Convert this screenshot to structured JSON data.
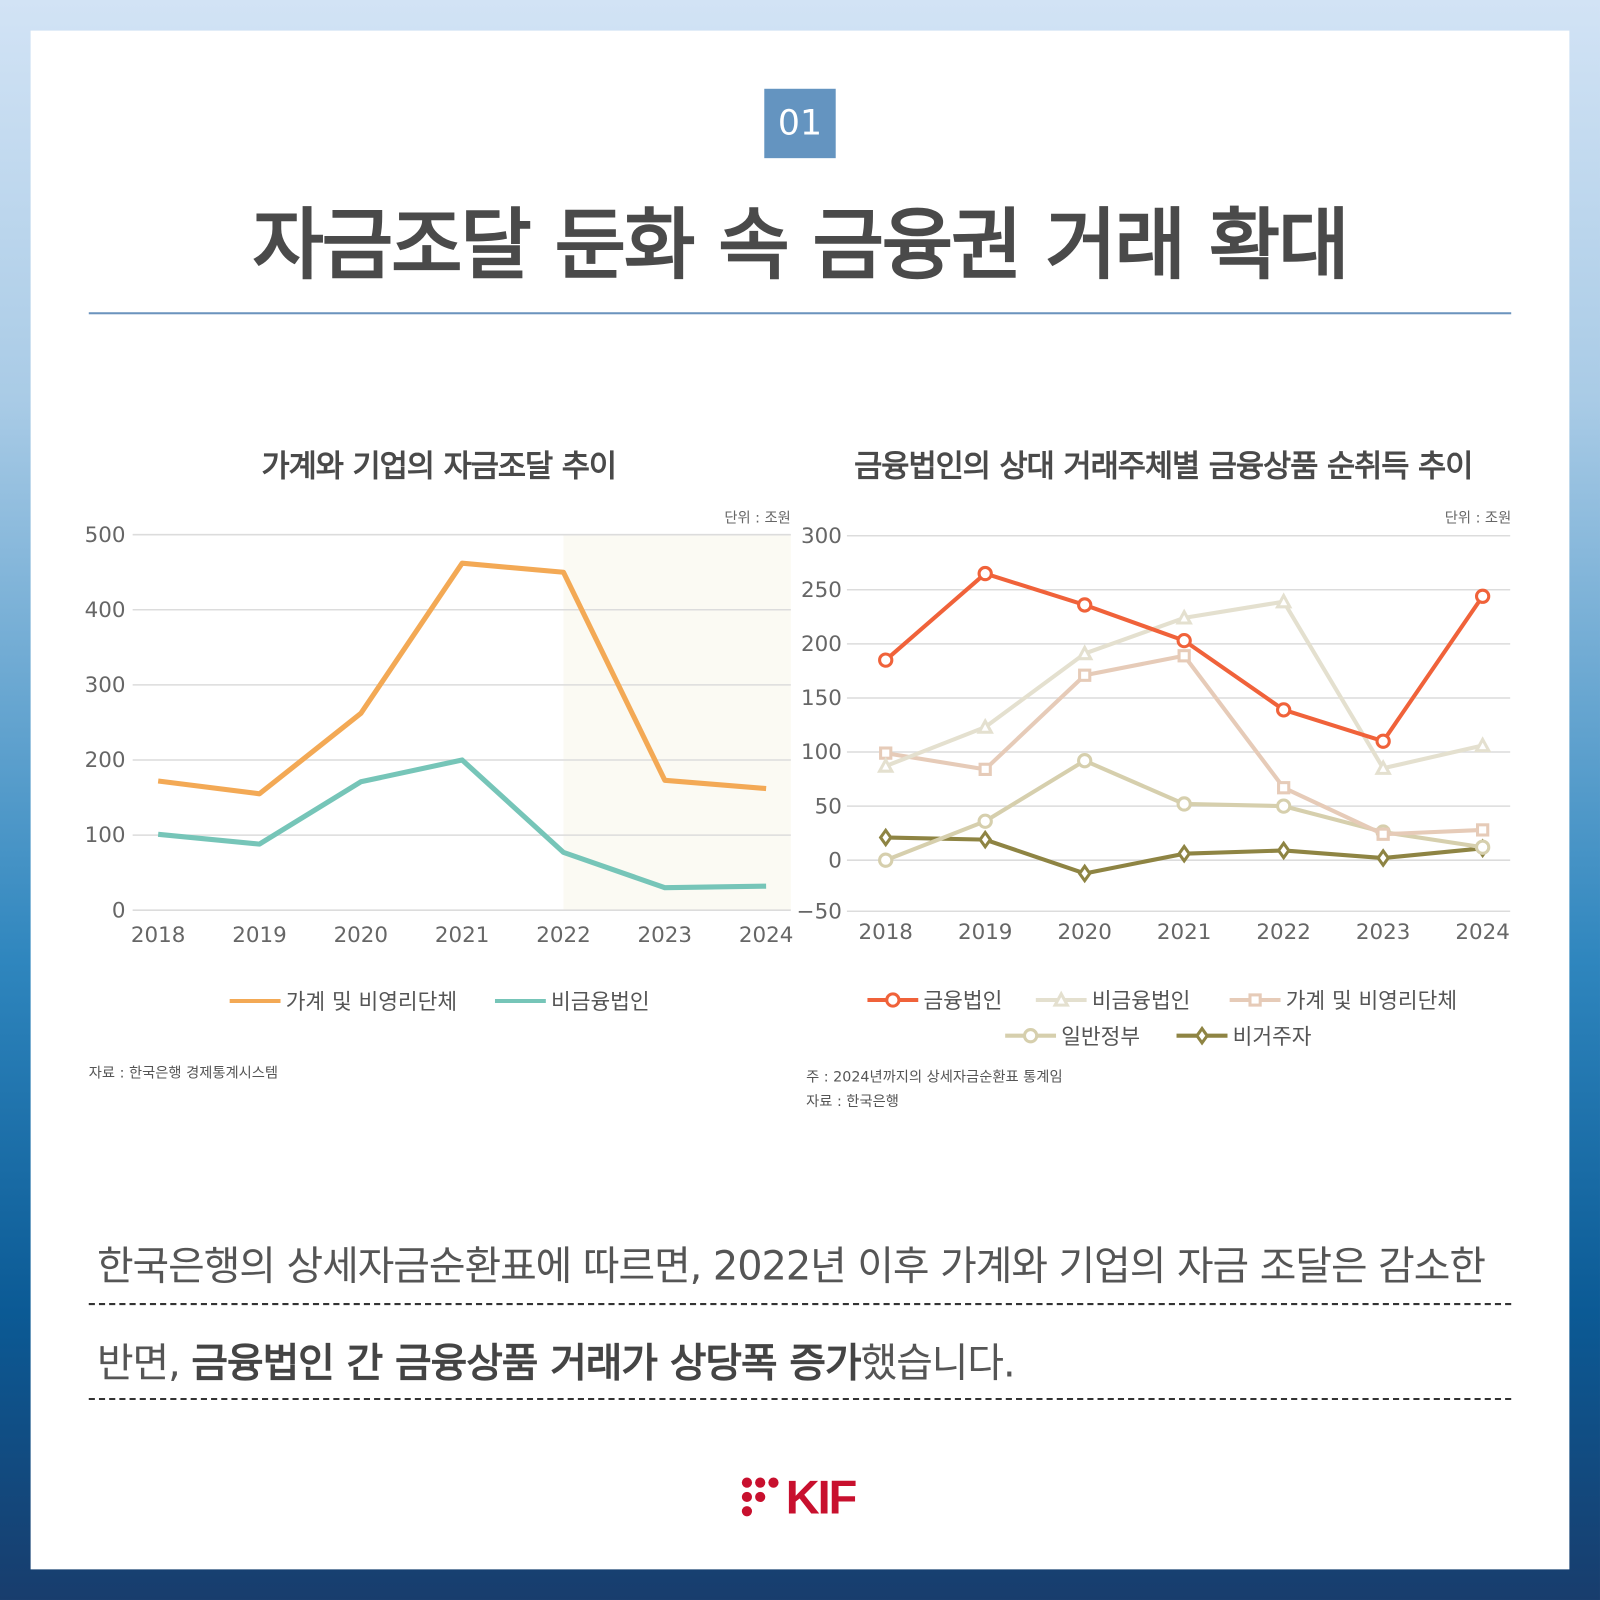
{
  "header": {
    "badge": "01",
    "title": "자금조달 둔화 속 금융권 거래 확대"
  },
  "chart_data": [
    {
      "type": "line",
      "title": "가계와 기업의 자금조달 추이",
      "unit": "단위 : 조원",
      "x": [
        "2018",
        "2019",
        "2020",
        "2021",
        "2022",
        "2023",
        "2024"
      ],
      "ylim": [
        0,
        500
      ],
      "yticks": [
        0,
        100,
        200,
        300,
        400,
        500
      ],
      "highlight_from": "2022",
      "series": [
        {
          "name": "가계 및 비영리단체",
          "color": "#f3a955",
          "marker": "none",
          "values": [
            172,
            155,
            262,
            462,
            450,
            173,
            162
          ]
        },
        {
          "name": "비금융법인",
          "color": "#76c5b8",
          "marker": "none",
          "values": [
            101,
            88,
            171,
            200,
            77,
            30,
            32
          ]
        }
      ],
      "legend": "bottom",
      "source": "자료 : 한국은행 경제통계시스템"
    },
    {
      "type": "line",
      "title": "금융법인의 상대 거래주체별 금융상품 순취득 추이",
      "unit": "단위 : 조원",
      "x": [
        "2018",
        "2019",
        "2020",
        "2021",
        "2022",
        "2023",
        "2024"
      ],
      "ylim": [
        -50,
        300
      ],
      "yticks": [
        -50,
        0,
        50,
        100,
        150,
        200,
        250,
        300
      ],
      "series": [
        {
          "name": "금융법인",
          "color": "#f0623a",
          "marker": "circle",
          "values": [
            185,
            265,
            236,
            203,
            139,
            110,
            244
          ]
        },
        {
          "name": "비금융법인",
          "color": "#e4e0cf",
          "marker": "triangle",
          "values": [
            87,
            123,
            191,
            224,
            239,
            85,
            106
          ]
        },
        {
          "name": "가계 및 비영리단체",
          "color": "#e6cbb8",
          "marker": "square",
          "values": [
            99,
            84,
            171,
            189,
            67,
            24,
            28
          ]
        },
        {
          "name": "일반정부",
          "color": "#d6cfad",
          "marker": "octagon",
          "values": [
            0,
            36,
            92,
            52,
            50,
            26,
            12
          ]
        },
        {
          "name": "비거주자",
          "color": "#8e8443",
          "marker": "diamond",
          "values": [
            21,
            19,
            -13,
            6,
            9,
            2,
            11
          ]
        }
      ],
      "legend": "bottom",
      "note": "주 : 2024년까지의 상세자금순환표 통계임",
      "source": "자료 : 한국은행"
    }
  ],
  "body": {
    "line1": "한국은행의 상세자금순환표에 따르면, 2022년 이후 가계와 기업의 자금 조달은 감소한",
    "line2_a": "반면, ",
    "line2_b": "금융법인 간 금융상품 거래가 상당폭 증가",
    "line2_c": "했습니다."
  },
  "footer": {
    "logo": "KIF",
    "brand_color": "#c8102e"
  }
}
